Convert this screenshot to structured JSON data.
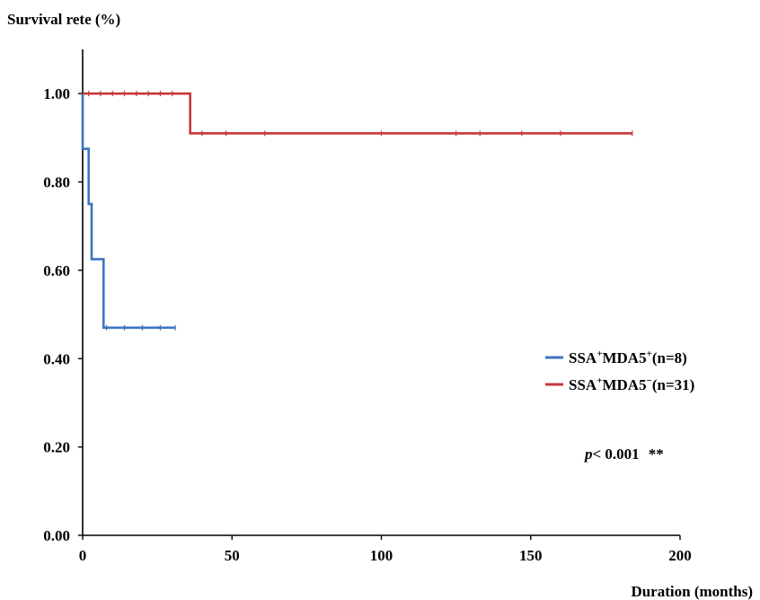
{
  "chart_data": {
    "type": "line",
    "subtype": "kaplan-meier",
    "ylabel": "Survival rete (%)",
    "xlabel": "Duration (months)",
    "xlim": [
      0,
      200
    ],
    "ylim": [
      0,
      1.1
    ],
    "x_ticks": [
      0,
      50,
      100,
      150,
      200
    ],
    "x_tick_labels": [
      "0",
      "50",
      "100",
      "150",
      "200"
    ],
    "y_ticks": [
      0,
      0.2,
      0.4,
      0.6,
      0.8,
      1.0
    ],
    "y_tick_labels": [
      "0.00",
      "0.20",
      "0.40",
      "0.60",
      "0.80",
      "1.00"
    ],
    "grid": false,
    "legend_position": "right",
    "annotation": {
      "p_label": "p",
      "p_value": "< 0.001",
      "stars": "**"
    },
    "series": [
      {
        "legend_parts": [
          "SSA",
          "+",
          "MDA5",
          "+",
          "(n=8)"
        ],
        "color": "#3c74c0",
        "steps": [
          [
            0,
            1.0
          ],
          [
            0,
            0.875
          ],
          [
            2,
            0.875
          ],
          [
            2,
            0.75
          ],
          [
            3,
            0.75
          ],
          [
            3,
            0.625
          ],
          [
            7,
            0.625
          ],
          [
            7,
            0.47
          ],
          [
            31,
            0.47
          ]
        ],
        "censor_x": [
          8,
          14,
          20,
          26,
          31
        ],
        "censor_y": 0.47
      },
      {
        "legend_parts": [
          "SSA",
          "+",
          "MDA5",
          "−",
          "(n=31)"
        ],
        "color": "#c8373a",
        "steps": [
          [
            0,
            1.0
          ],
          [
            36,
            1.0
          ],
          [
            36,
            0.91
          ],
          [
            184,
            0.91
          ]
        ],
        "censor_x": [
          2,
          6,
          10,
          14,
          18,
          22,
          26,
          30,
          40,
          48,
          61,
          100,
          125,
          133,
          147,
          160,
          184
        ],
        "censor_y_before": 1.0,
        "censor_y_after": 0.91,
        "censor_split": 36
      }
    ]
  }
}
